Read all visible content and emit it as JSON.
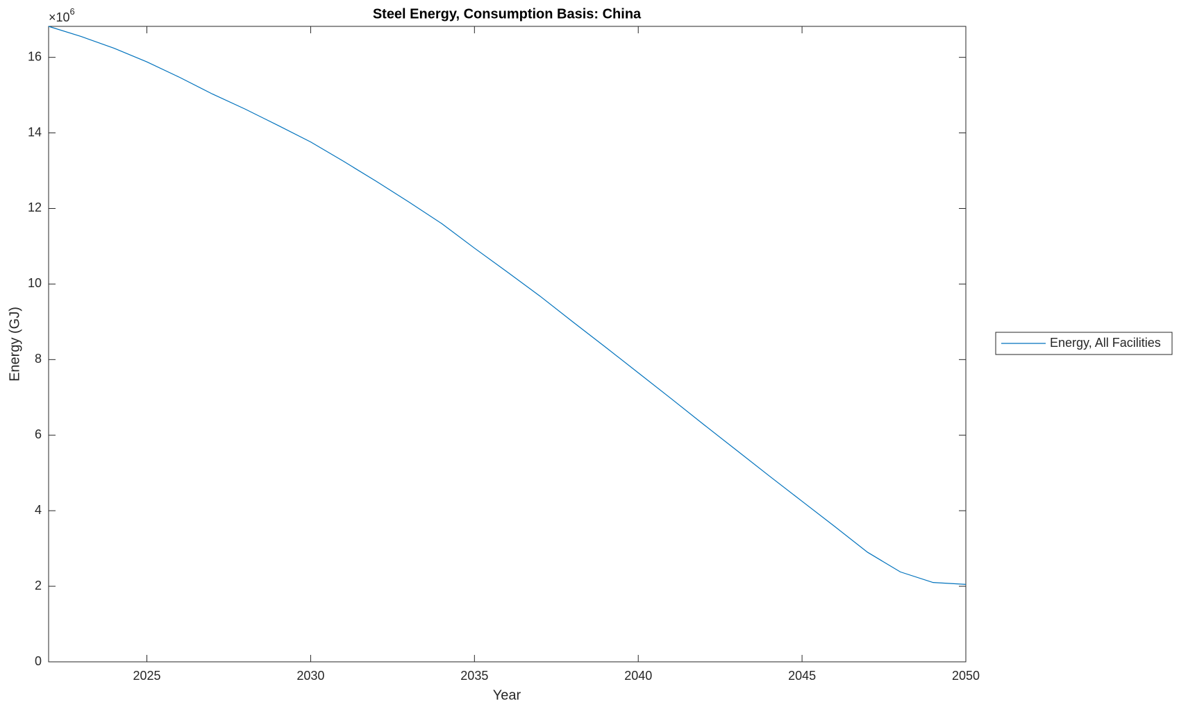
{
  "chart_data": {
    "type": "line",
    "title": "Steel Energy, Consumption Basis: China",
    "xlabel": "Year",
    "ylabel": "Energy (GJ)",
    "y_multiplier": {
      "base": "×10",
      "exponent": "6"
    },
    "x": [
      2022,
      2023,
      2024,
      2025,
      2026,
      2027,
      2028,
      2029,
      2030,
      2031,
      2032,
      2033,
      2034,
      2035,
      2036,
      2037,
      2038,
      2039,
      2040,
      2041,
      2042,
      2043,
      2044,
      2045,
      2046,
      2047,
      2048,
      2049,
      2050
    ],
    "series": [
      {
        "name": "Energy, All Facilities",
        "color": "#0072bd",
        "values": [
          16.82,
          16.55,
          16.24,
          15.88,
          15.47,
          15.03,
          14.63,
          14.2,
          13.76,
          13.25,
          12.72,
          12.17,
          11.6,
          10.95,
          10.32,
          9.68,
          9.0,
          8.33,
          7.65,
          6.97,
          6.28,
          5.6,
          4.92,
          4.25,
          3.58,
          2.9,
          2.38,
          2.1,
          2.05
        ]
      }
    ],
    "xlim": [
      2022,
      2050
    ],
    "xticks": [
      2025,
      2030,
      2035,
      2040,
      2045,
      2050
    ],
    "ylim": [
      0,
      16.82
    ],
    "yticks": [
      0,
      2,
      4,
      6,
      8,
      10,
      12,
      14,
      16
    ],
    "grid": false,
    "legend": "outside-right"
  }
}
